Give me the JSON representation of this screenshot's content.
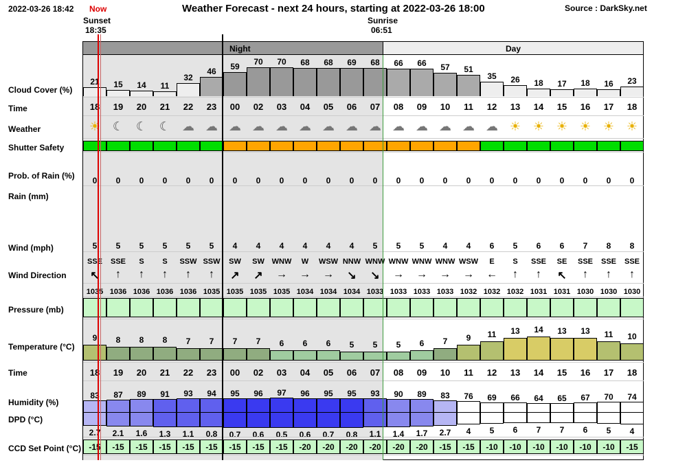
{
  "header": {
    "datetime": "2022-03-26 18:42",
    "now_label": "Now",
    "title": "Weather Forecast - next 24 hours, starting at 2022-03-26 18:00",
    "source": "Source : DarkSky.net",
    "sunset_label": "Sunset",
    "sunset_time": "18:35",
    "sunrise_label": "Sunrise",
    "sunrise_time": "06:51",
    "night_label": "Night",
    "day_label": "Day"
  },
  "colors": {
    "night_bg": "#e4e4e4",
    "night_bar": "#999999",
    "day_bar": "#eeeeee",
    "now_line": "#dd0000",
    "green": "#00dd00",
    "orange": "#ffa500",
    "light_green": "#c8f8c8"
  },
  "labels": {
    "cloud_cover": "Cloud Cover (%)",
    "time": "Time",
    "weather": "Weather",
    "shutter": "Shutter Safety",
    "prob_rain": "Prob. of Rain (%)",
    "rain": "Rain (mm)",
    "wind": "Wind (mph)",
    "wind_dir": "Wind Direction",
    "pressure": "Pressure (mb)",
    "temperature": "Temperature (°C)",
    "time2": "Time",
    "humidity": "Humidity (%)",
    "dpd": "DPD (°C)",
    "ccd": "CCD Set Point (°C)"
  },
  "forecast": {
    "times": [
      "18",
      "19",
      "20",
      "21",
      "22",
      "23",
      "00",
      "02",
      "03",
      "04",
      "05",
      "06",
      "07",
      "08",
      "09",
      "10",
      "11",
      "12",
      "13",
      "14",
      "15",
      "16",
      "17",
      "18"
    ],
    "cloud_cover": [
      21,
      15,
      14,
      11,
      32,
      46,
      59,
      70,
      70,
      68,
      68,
      69,
      68,
      66,
      66,
      57,
      51,
      35,
      26,
      18,
      17,
      18,
      16,
      23
    ],
    "weather_icons": [
      "sun-icon",
      "moon-icon",
      "moon-icon",
      "moon-icon",
      "partly-cloudy-night-icon",
      "partly-cloudy-night-icon",
      "partly-cloudy-night-icon",
      "partly-cloudy-night-icon",
      "partly-cloudy-night-icon",
      "partly-cloudy-night-icon",
      "partly-cloudy-night-icon",
      "partly-cloudy-night-icon",
      "partly-cloudy-day-icon",
      "partly-cloudy-day-icon",
      "partly-cloudy-day-icon",
      "partly-cloudy-day-icon",
      "partly-cloudy-day-icon",
      "partly-cloudy-day-icon",
      "sun-icon",
      "sun-icon",
      "sun-icon",
      "sun-icon",
      "sun-icon",
      "sun-icon"
    ],
    "shutter_safety": [
      "green",
      "green",
      "green",
      "green",
      "green",
      "green",
      "orange",
      "orange",
      "orange",
      "orange",
      "orange",
      "orange",
      "orange",
      "orange",
      "orange",
      "orange",
      "orange",
      "green",
      "green",
      "green",
      "green",
      "green",
      "green",
      "green"
    ],
    "prob_rain": [
      0,
      0,
      0,
      0,
      0,
      0,
      0,
      0,
      0,
      0,
      0,
      0,
      0,
      0,
      0,
      0,
      0,
      0,
      0,
      0,
      0,
      0,
      0,
      0
    ],
    "wind": [
      5,
      5,
      5,
      5,
      5,
      5,
      4,
      4,
      4,
      4,
      4,
      4,
      5,
      5,
      5,
      4,
      4,
      6,
      5,
      6,
      6,
      7,
      8,
      8
    ],
    "wind_dir": [
      "SSE",
      "SSE",
      "S",
      "S",
      "SSW",
      "SSW",
      "SW",
      "SW",
      "WNW",
      "W",
      "WSW",
      "NNW",
      "WNW",
      "WNW",
      "WNW",
      "WNW",
      "WSW",
      "E",
      "S",
      "SSE",
      "SE",
      "SSE",
      "SSE",
      "SSE"
    ],
    "wind_arrow": [
      "↖",
      "↑",
      "↑",
      "↑",
      "↑",
      "↑",
      "↗",
      "↗",
      "→",
      "→",
      "→",
      "↘",
      "↘",
      "→",
      "→",
      "→",
      "→",
      "←",
      "↑",
      "↑",
      "↖",
      "↑",
      "↑",
      "↑"
    ],
    "pressure": [
      1035,
      1036,
      1036,
      1036,
      1036,
      1035,
      1035,
      1035,
      1035,
      1034,
      1034,
      1034,
      1033,
      1033,
      1033,
      1033,
      1032,
      1032,
      1032,
      1031,
      1031,
      1030,
      1030,
      1030
    ],
    "temperature": [
      9,
      8,
      8,
      8,
      7,
      7,
      7,
      7,
      6,
      6,
      6,
      5,
      5,
      5,
      6,
      7,
      9,
      11,
      13,
      14,
      13,
      13,
      11,
      10
    ],
    "humidity": [
      83,
      87,
      89,
      91,
      93,
      94,
      95,
      96,
      97,
      96,
      95,
      95,
      93,
      90,
      89,
      83,
      76,
      69,
      66,
      64,
      65,
      67,
      70,
      74
    ],
    "dpd": [
      2.7,
      2.1,
      1.6,
      1.3,
      1.1,
      0.8,
      0.7,
      0.6,
      0.5,
      0.6,
      0.7,
      0.8,
      1.1,
      1.4,
      1.7,
      2.7,
      4,
      5,
      6,
      7,
      7,
      6,
      5,
      4
    ],
    "ccd_setpoint": [
      -15,
      -15,
      -15,
      -15,
      -15,
      -15,
      -15,
      -15,
      -15,
      -20,
      -20,
      -20,
      -20,
      -20,
      -20,
      -15,
      -15,
      -10,
      -10,
      -10,
      -10,
      -10,
      -10,
      -15
    ]
  }
}
